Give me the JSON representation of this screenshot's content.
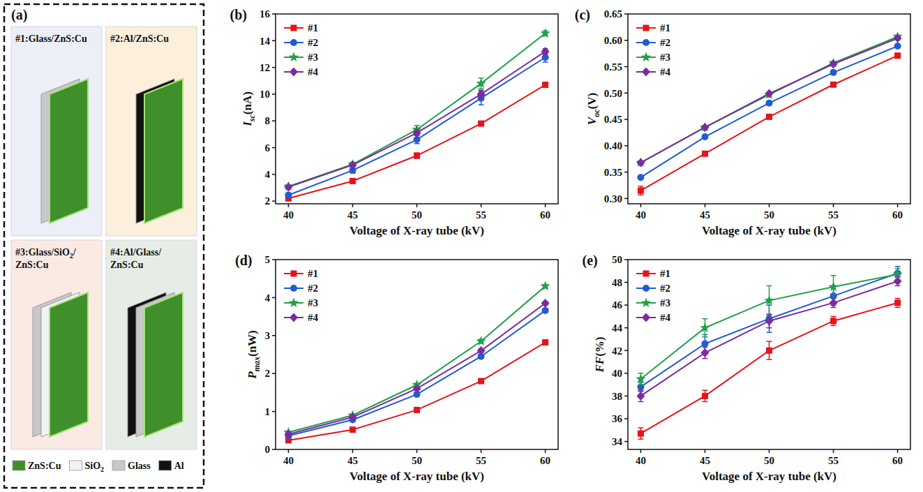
{
  "diagram": {
    "panel": "(a)",
    "devices": [
      {
        "label": "#1:Glass/ZnS:Cu",
        "layers": [
          "Glass",
          "ZnS:Cu"
        ]
      },
      {
        "label": "#2:Al/ZnS:Cu",
        "layers": [
          "Al",
          "ZnS:Cu"
        ]
      },
      {
        "label": "#3:Glass/SiO2/ZnS:Cu",
        "layers": [
          "Glass",
          "SiO2",
          "ZnS:Cu"
        ]
      },
      {
        "label": "#4:Al/Glass/ZnS:Cu",
        "layers": [
          "Al",
          "Glass",
          "ZnS:Cu"
        ]
      }
    ],
    "legend": [
      {
        "name": "ZnS:Cu",
        "color": "#3f8f2a"
      },
      {
        "name": "SiO2",
        "color": "#f3f3f3"
      },
      {
        "name": "Glass",
        "color": "#c8c8c8"
      },
      {
        "name": "Al",
        "color": "#111111"
      }
    ]
  },
  "chart_data": [
    {
      "type": "line",
      "panel": "(b)",
      "x_label": "Voltage of X-ray tube (kV)",
      "y_label": "Isc(nA)",
      "x": [
        40,
        45,
        50,
        55,
        60
      ],
      "xlim": [
        39,
        61
      ],
      "xticks": [
        40,
        45,
        50,
        55,
        60
      ],
      "ylim": [
        1.8,
        16
      ],
      "yticks": [
        2,
        4,
        6,
        8,
        10,
        12,
        14,
        16
      ],
      "grid": false,
      "legend": "upper left",
      "series": [
        {
          "name": "#1",
          "color": "#e3141b",
          "marker": "square",
          "values": [
            2.2,
            3.5,
            5.4,
            7.8,
            10.7
          ],
          "errors": [
            0.15,
            0.1,
            0.2,
            0.1,
            0.2
          ]
        },
        {
          "name": "#2",
          "color": "#1f5bd6",
          "marker": "circle",
          "values": [
            2.45,
            4.3,
            6.6,
            9.7,
            12.75
          ],
          "errors": [
            0.15,
            0.2,
            0.3,
            0.5,
            0.35
          ]
        },
        {
          "name": "#3",
          "color": "#21a04a",
          "marker": "star",
          "values": [
            3.1,
            4.75,
            7.35,
            10.8,
            14.55
          ],
          "errors": [
            0.1,
            0.15,
            0.3,
            0.4,
            0.2
          ]
        },
        {
          "name": "#4",
          "color": "#7a2c9e",
          "marker": "diamond",
          "values": [
            3.05,
            4.7,
            7.1,
            10.0,
            13.2
          ],
          "errors": [
            0.1,
            0.1,
            0.2,
            0.3,
            0.2
          ]
        }
      ]
    },
    {
      "type": "line",
      "panel": "(c)",
      "x_label": "Voltage of X-ray tube (kV)",
      "y_label": "Voc(V)",
      "x": [
        40,
        45,
        50,
        55,
        60
      ],
      "xlim": [
        39,
        61
      ],
      "xticks": [
        40,
        45,
        50,
        55,
        60
      ],
      "ylim": [
        0.29,
        0.65
      ],
      "yticks": [
        {
          "value": 0.3,
          "label": "0.30"
        },
        0.35,
        {
          "value": 0.4,
          "label": "0.40"
        },
        0.45,
        {
          "value": 0.5,
          "label": "0.50"
        },
        0.55,
        {
          "value": 0.6,
          "label": "0.60"
        },
        0.65
      ],
      "grid": false,
      "legend": "upper left",
      "series": [
        {
          "name": "#1",
          "color": "#e3141b",
          "marker": "square",
          "values": [
            0.315,
            0.385,
            0.455,
            0.516,
            0.571
          ],
          "errors": [
            0.008,
            0.003,
            0.003,
            0.002,
            0.003
          ]
        },
        {
          "name": "#2",
          "color": "#1f5bd6",
          "marker": "circle",
          "values": [
            0.34,
            0.417,
            0.481,
            0.539,
            0.589
          ],
          "errors": [
            0.002,
            0.002,
            0.002,
            0.002,
            0.002
          ]
        },
        {
          "name": "#3",
          "color": "#21a04a",
          "marker": "star",
          "values": [
            0.368,
            0.435,
            0.497,
            0.557,
            0.607
          ],
          "errors": [
            0.003,
            0.003,
            0.003,
            0.003,
            0.003
          ]
        },
        {
          "name": "#4",
          "color": "#7a2c9e",
          "marker": "diamond",
          "values": [
            0.368,
            0.435,
            0.499,
            0.555,
            0.604
          ],
          "errors": [
            0.002,
            0.002,
            0.002,
            0.002,
            0.002
          ]
        }
      ]
    },
    {
      "type": "line",
      "panel": "(d)",
      "x_label": "Voltage of X-ray tube (kV)",
      "y_label": "Pmax(nW)",
      "x": [
        40,
        45,
        50,
        55,
        60
      ],
      "xlim": [
        39,
        61
      ],
      "xticks": [
        40,
        45,
        50,
        55,
        60
      ],
      "ylim": [
        0,
        5
      ],
      "yticks": [
        0,
        1,
        2,
        3,
        4,
        5
      ],
      "grid": false,
      "legend": "upper left",
      "series": [
        {
          "name": "#1",
          "color": "#e3141b",
          "marker": "square",
          "values": [
            0.24,
            0.52,
            1.04,
            1.8,
            2.82
          ],
          "errors": [
            0.02,
            0.02,
            0.04,
            0.03,
            0.04
          ]
        },
        {
          "name": "#2",
          "color": "#1f5bd6",
          "marker": "circle",
          "values": [
            0.36,
            0.78,
            1.45,
            2.45,
            3.66
          ],
          "errors": [
            0.03,
            0.03,
            0.04,
            0.05,
            0.05
          ]
        },
        {
          "name": "#3",
          "color": "#21a04a",
          "marker": "star",
          "values": [
            0.45,
            0.9,
            1.7,
            2.85,
            4.3
          ],
          "errors": [
            0.02,
            0.03,
            0.04,
            0.05,
            0.04
          ]
        },
        {
          "name": "#4",
          "color": "#7a2c9e",
          "marker": "diamond",
          "values": [
            0.4,
            0.85,
            1.6,
            2.6,
            3.85
          ],
          "errors": [
            0.02,
            0.03,
            0.04,
            0.05,
            0.04
          ]
        }
      ]
    },
    {
      "type": "line",
      "panel": "(e)",
      "x_label": "Voltage of X-ray tube (kV)",
      "y_label": "FF(%)",
      "x": [
        40,
        45,
        50,
        55,
        60
      ],
      "xlim": [
        39,
        61
      ],
      "xticks": [
        40,
        45,
        50,
        55,
        60
      ],
      "ylim": [
        33.3,
        50
      ],
      "yticks": [
        34,
        36,
        38,
        40,
        42,
        44,
        46,
        48,
        50
      ],
      "grid": false,
      "legend": "upper left",
      "series": [
        {
          "name": "#1",
          "color": "#e3141b",
          "marker": "square",
          "values": [
            34.7,
            38.0,
            42.0,
            44.6,
            46.2
          ],
          "errors": [
            0.5,
            0.5,
            0.8,
            0.4,
            0.4
          ]
        },
        {
          "name": "#2",
          "color": "#1f5bd6",
          "marker": "circle",
          "values": [
            38.8,
            42.6,
            44.8,
            46.8,
            48.8
          ],
          "errors": [
            0.4,
            0.8,
            1.2,
            0.8,
            0.6
          ]
        },
        {
          "name": "#3",
          "color": "#21a04a",
          "marker": "star",
          "values": [
            39.5,
            44.0,
            46.4,
            47.6,
            48.7
          ],
          "errors": [
            0.5,
            0.8,
            1.3,
            1.0,
            0.5
          ]
        },
        {
          "name": "#4",
          "color": "#7a2c9e",
          "marker": "diamond",
          "values": [
            38.0,
            41.8,
            44.6,
            46.2,
            48.1
          ],
          "errors": [
            0.5,
            0.5,
            0.6,
            0.4,
            0.4
          ]
        }
      ]
    }
  ]
}
